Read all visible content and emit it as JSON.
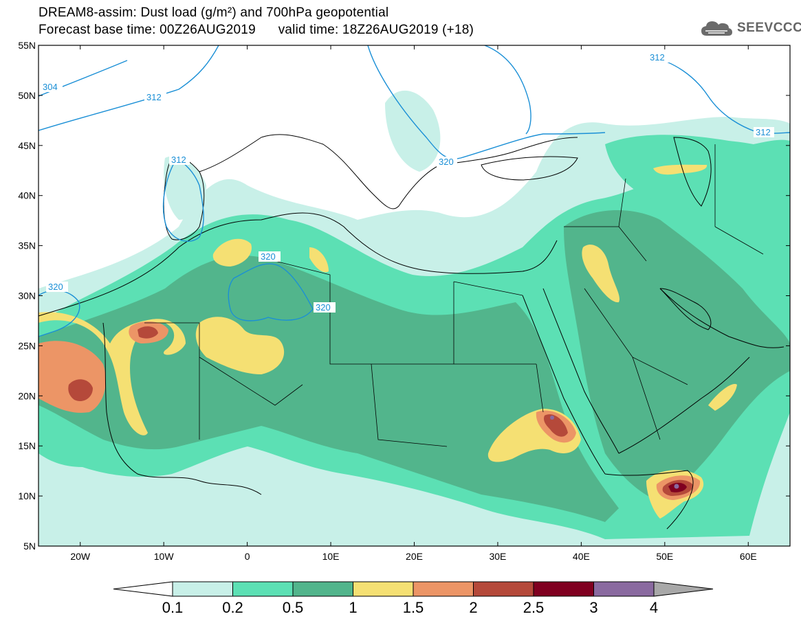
{
  "header": {
    "line1": "DREAM8-assim: Dust load (g/m²) and 700hPa geopotential",
    "line2_left": "Forecast base time: 00Z26AUG2019",
    "line2_right": "valid time: 18Z26AUG2019 (+18)"
  },
  "logo": {
    "text": "SEEVCCC",
    "icon": "cloud-icon",
    "color": "#666666"
  },
  "map": {
    "lon_range": [
      -25,
      65
    ],
    "lat_range": [
      5,
      55
    ],
    "lat_ticks": [
      "55N",
      "50N",
      "45N",
      "40N",
      "35N",
      "30N",
      "25N",
      "20N",
      "15N",
      "10N",
      "5N"
    ],
    "lon_ticks": [
      "20W",
      "10W",
      "0",
      "10E",
      "20E",
      "30E",
      "40E",
      "50E",
      "60E"
    ],
    "contour_labels": [
      "304",
      "312",
      "312",
      "312",
      "312",
      "320",
      "320",
      "320",
      "320"
    ],
    "contour_color": "#1a8fd6",
    "border_color": "#000000"
  },
  "colorbar": {
    "levels": [
      "0.1",
      "0.2",
      "0.5",
      "1",
      "1.5",
      "2",
      "2.5",
      "3",
      "4"
    ],
    "colors": [
      "#ffffff",
      "#c8f0e8",
      "#5ce0b4",
      "#52b58c",
      "#f5e073",
      "#ec9566",
      "#b5493a",
      "#800020",
      "#8a6aa0",
      "#a8a8a8"
    ]
  }
}
